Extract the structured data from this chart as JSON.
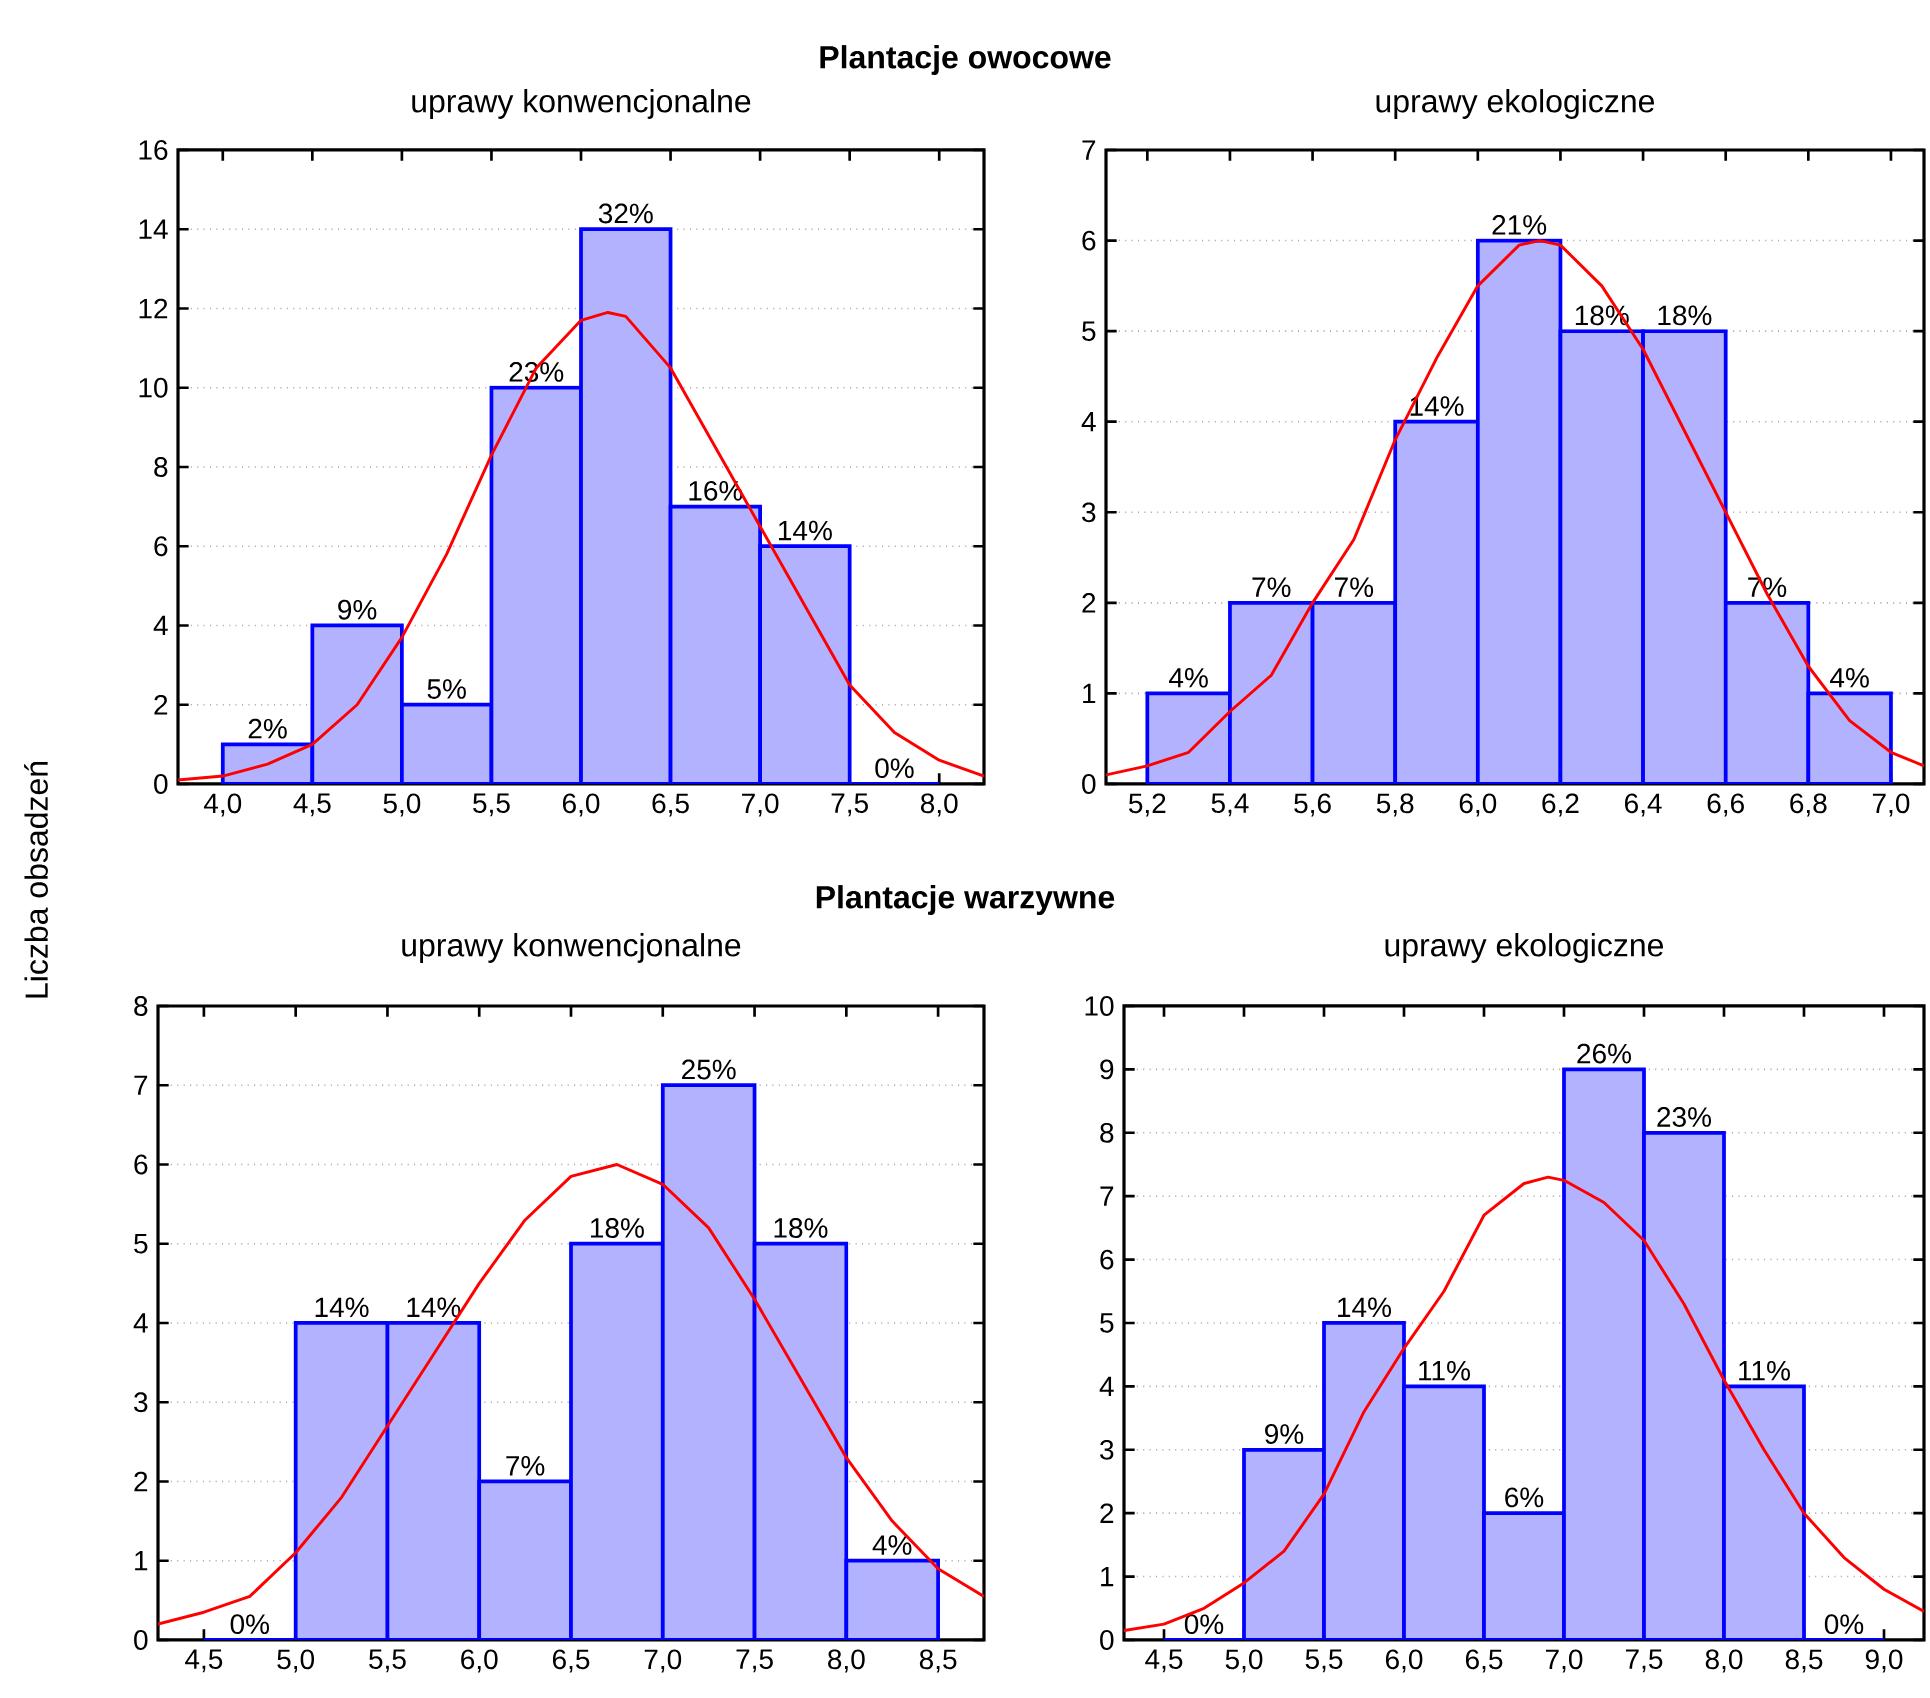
{
  "chart_data": [
    {
      "type": "histogram",
      "title": "Plantacje owocowe",
      "subtitle": "uprawy konwencjonalne",
      "ylabel": "Liczba obsadzeń",
      "bins": [
        4.0,
        4.5,
        5.0,
        5.5,
        6.0,
        6.5,
        7.0,
        7.5,
        8.0
      ],
      "values": [
        1,
        4,
        2,
        10,
        14,
        7,
        6,
        0
      ],
      "color": "#0000ff",
      "annotations": [
        {
          "text": "2%",
          "x": 4.25,
          "y": 1
        },
        {
          "text": "9%",
          "x": 4.75,
          "y": 4
        },
        {
          "text": "5%",
          "x": 5.25,
          "y": 2
        },
        {
          "text": "23%",
          "x": 5.75,
          "y": 10
        },
        {
          "text": "32%",
          "x": 6.25,
          "y": 14
        },
        {
          "text": "16%",
          "x": 6.75,
          "y": 7
        },
        {
          "text": "14%",
          "x": 7.25,
          "y": 6
        },
        {
          "text": "0%",
          "x": 7.75,
          "y": 0
        }
      ],
      "series": [
        {
          "type": "line",
          "color": "#ff0000",
          "x": [
            3.75,
            4.0,
            4.25,
            4.5,
            4.75,
            5.0,
            5.25,
            5.5,
            5.75,
            6.0,
            6.15,
            6.25,
            6.5,
            6.75,
            7.0,
            7.25,
            7.5,
            7.75,
            8.0,
            8.25
          ],
          "values": [
            0.1,
            0.2,
            0.5,
            1.0,
            2.0,
            3.7,
            5.8,
            8.3,
            10.5,
            11.7,
            11.9,
            11.8,
            10.5,
            8.5,
            6.5,
            4.5,
            2.5,
            1.3,
            0.6,
            0.2
          ]
        }
      ],
      "xlim": [
        3.75,
        8.25
      ],
      "ylim": [
        0,
        16
      ],
      "xticks": [
        {
          "value": 4.0,
          "label": "4,0"
        },
        {
          "value": 4.5,
          "label": "4,5"
        },
        {
          "value": 5.0,
          "label": "5,0"
        },
        {
          "value": 5.5,
          "label": "5,5"
        },
        {
          "value": 6.0,
          "label": "6,0"
        },
        {
          "value": 6.5,
          "label": "6,5"
        },
        {
          "value": 7.0,
          "label": "7,0"
        },
        {
          "value": 7.5,
          "label": "7,5"
        },
        {
          "value": 8.0,
          "label": "8,0"
        }
      ],
      "yticks": [
        0,
        2,
        4,
        6,
        8,
        10,
        12,
        14,
        16
      ],
      "grid": "y"
    },
    {
      "type": "histogram",
      "subtitle": "uprawy ekologiczne",
      "bins": [
        5.2,
        5.4,
        5.6,
        5.8,
        6.0,
        6.2,
        6.4,
        6.6,
        6.8,
        7.0
      ],
      "values": [
        1,
        2,
        2,
        4,
        6,
        5,
        5,
        2,
        1
      ],
      "color": "#0000ff",
      "annotations": [
        {
          "text": "4%",
          "x": 5.3,
          "y": 1
        },
        {
          "text": "7%",
          "x": 5.5,
          "y": 2
        },
        {
          "text": "7%",
          "x": 5.7,
          "y": 2
        },
        {
          "text": "14%",
          "x": 5.9,
          "y": 4
        },
        {
          "text": "21%",
          "x": 6.1,
          "y": 6
        },
        {
          "text": "18%",
          "x": 6.3,
          "y": 5
        },
        {
          "text": "18%",
          "x": 6.5,
          "y": 5
        },
        {
          "text": "7%",
          "x": 6.7,
          "y": 2
        },
        {
          "text": "4%",
          "x": 6.9,
          "y": 1
        }
      ],
      "series": [
        {
          "type": "line",
          "color": "#ff0000",
          "x": [
            5.1,
            5.2,
            5.3,
            5.4,
            5.5,
            5.6,
            5.7,
            5.8,
            5.9,
            6.0,
            6.1,
            6.15,
            6.2,
            6.3,
            6.4,
            6.5,
            6.6,
            6.7,
            6.8,
            6.9,
            7.0,
            7.08
          ],
          "values": [
            0.1,
            0.2,
            0.35,
            0.8,
            1.2,
            2.0,
            2.7,
            3.8,
            4.7,
            5.5,
            5.95,
            6.0,
            5.95,
            5.5,
            4.8,
            3.9,
            3.0,
            2.1,
            1.3,
            0.7,
            0.35,
            0.2
          ]
        }
      ],
      "xlim": [
        5.1,
        7.08
      ],
      "ylim": [
        0,
        7
      ],
      "xticks": [
        {
          "value": 5.2,
          "label": "5,2"
        },
        {
          "value": 5.4,
          "label": "5,4"
        },
        {
          "value": 5.6,
          "label": "5,6"
        },
        {
          "value": 5.8,
          "label": "5,8"
        },
        {
          "value": 6.0,
          "label": "6,0"
        },
        {
          "value": 6.2,
          "label": "6,2"
        },
        {
          "value": 6.4,
          "label": "6,4"
        },
        {
          "value": 6.6,
          "label": "6,6"
        },
        {
          "value": 6.8,
          "label": "6,8"
        },
        {
          "value": 7.0,
          "label": "7,0"
        }
      ],
      "yticks": [
        0,
        1,
        2,
        3,
        4,
        5,
        6,
        7
      ],
      "grid": "y"
    },
    {
      "type": "histogram",
      "title": "Plantacje warzywne",
      "subtitle": "uprawy konwencjonalne",
      "bins": [
        4.5,
        5.0,
        5.5,
        6.0,
        6.5,
        7.0,
        7.5,
        8.0,
        8.5
      ],
      "values": [
        0,
        4,
        4,
        2,
        5,
        7,
        5,
        1
      ],
      "color": "#0000ff",
      "annotations": [
        {
          "text": "0%",
          "x": 4.75,
          "y": 0
        },
        {
          "text": "14%",
          "x": 5.25,
          "y": 4
        },
        {
          "text": "14%",
          "x": 5.75,
          "y": 4
        },
        {
          "text": "7%",
          "x": 6.25,
          "y": 2
        },
        {
          "text": "18%",
          "x": 6.75,
          "y": 5
        },
        {
          "text": "25%",
          "x": 7.25,
          "y": 7
        },
        {
          "text": "18%",
          "x": 7.75,
          "y": 5
        },
        {
          "text": "4%",
          "x": 8.25,
          "y": 1
        }
      ],
      "series": [
        {
          "type": "line",
          "color": "#ff0000",
          "x": [
            4.25,
            4.5,
            4.75,
            5.0,
            5.25,
            5.5,
            5.75,
            6.0,
            6.25,
            6.5,
            6.75,
            7.0,
            7.25,
            7.5,
            7.75,
            8.0,
            8.25,
            8.5,
            8.75
          ],
          "values": [
            0.2,
            0.35,
            0.55,
            1.1,
            1.8,
            2.7,
            3.6,
            4.5,
            5.3,
            5.85,
            6.0,
            5.75,
            5.2,
            4.3,
            3.3,
            2.3,
            1.5,
            0.9,
            0.55
          ]
        }
      ],
      "xlim": [
        4.25,
        8.75
      ],
      "ylim": [
        0,
        8
      ],
      "xticks": [
        {
          "value": 4.5,
          "label": "4,5"
        },
        {
          "value": 5.0,
          "label": "5,0"
        },
        {
          "value": 5.5,
          "label": "5,5"
        },
        {
          "value": 6.0,
          "label": "6,0"
        },
        {
          "value": 6.5,
          "label": "6,5"
        },
        {
          "value": 7.0,
          "label": "7,0"
        },
        {
          "value": 7.5,
          "label": "7,5"
        },
        {
          "value": 8.0,
          "label": "8,0"
        },
        {
          "value": 8.5,
          "label": "8,5"
        }
      ],
      "yticks": [
        0,
        1,
        2,
        3,
        4,
        5,
        6,
        7,
        8
      ],
      "grid": "y"
    },
    {
      "type": "histogram",
      "subtitle": "uprawy ekologiczne",
      "bins": [
        4.5,
        5.0,
        5.5,
        6.0,
        6.5,
        7.0,
        7.5,
        8.0,
        8.5,
        9.0
      ],
      "values": [
        0,
        3,
        5,
        4,
        2,
        9,
        8,
        4,
        0
      ],
      "color": "#0000ff",
      "annotations": [
        {
          "text": "0%",
          "x": 4.75,
          "y": 0
        },
        {
          "text": "9%",
          "x": 5.25,
          "y": 3
        },
        {
          "text": "14%",
          "x": 5.75,
          "y": 5
        },
        {
          "text": "11%",
          "x": 6.25,
          "y": 4
        },
        {
          "text": "6%",
          "x": 6.75,
          "y": 2
        },
        {
          "text": "26%",
          "x": 7.25,
          "y": 9
        },
        {
          "text": "23%",
          "x": 7.75,
          "y": 8
        },
        {
          "text": "11%",
          "x": 8.25,
          "y": 4
        },
        {
          "text": "0%",
          "x": 8.75,
          "y": 0
        }
      ],
      "series": [
        {
          "type": "line",
          "color": "#ff0000",
          "x": [
            4.25,
            4.5,
            4.75,
            5.0,
            5.25,
            5.5,
            5.75,
            6.0,
            6.25,
            6.5,
            6.75,
            6.9,
            7.0,
            7.25,
            7.5,
            7.75,
            8.0,
            8.25,
            8.5,
            8.75,
            9.0,
            9.25
          ],
          "values": [
            0.15,
            0.25,
            0.5,
            0.9,
            1.4,
            2.3,
            3.6,
            4.6,
            5.5,
            6.7,
            7.2,
            7.3,
            7.25,
            6.9,
            6.3,
            5.3,
            4.1,
            3.0,
            2.0,
            1.3,
            0.8,
            0.45
          ]
        }
      ],
      "xlim": [
        4.25,
        9.25
      ],
      "ylim": [
        0,
        10
      ],
      "xticks": [
        {
          "value": 4.5,
          "label": "4,5"
        },
        {
          "value": 5.0,
          "label": "5,0"
        },
        {
          "value": 5.5,
          "label": "5,5"
        },
        {
          "value": 6.0,
          "label": "6,0"
        },
        {
          "value": 6.5,
          "label": "6,5"
        },
        {
          "value": 7.0,
          "label": "7,0"
        },
        {
          "value": 7.5,
          "label": "7,5"
        },
        {
          "value": 8.0,
          "label": "8,0"
        },
        {
          "value": 8.5,
          "label": "8,5"
        },
        {
          "value": 9.0,
          "label": "9,0"
        }
      ],
      "yticks": [
        0,
        1,
        2,
        3,
        4,
        5,
        6,
        7,
        8,
        9,
        10
      ],
      "grid": "y"
    }
  ]
}
